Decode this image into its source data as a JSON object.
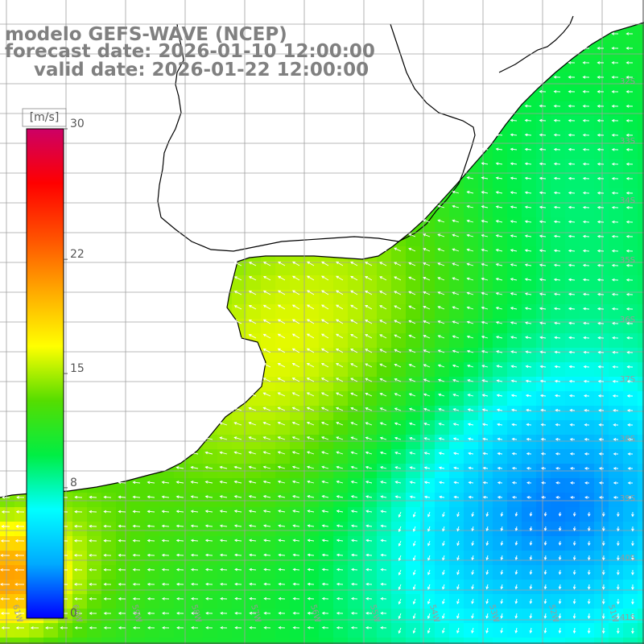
{
  "header": {
    "model": "modelo GEFS-WAVE (NCEP)",
    "forecast_date": "forecast date: 2026-01-10 12:00:00",
    "valid_date": "valid date: 2026-01-22 12:00:00"
  },
  "colorbar": {
    "unit_label": "[m/s]",
    "ticks": [
      {
        "value": 30,
        "label": "30"
      },
      {
        "value": 22,
        "label": "22"
      },
      {
        "value": 15,
        "label": "15"
      },
      {
        "value": 8,
        "label": "8"
      },
      {
        "value": 0,
        "label": "0"
      }
    ],
    "range": [
      0,
      30
    ],
    "colors": [
      "#0000ff",
      "#00aaff",
      "#00ffff",
      "#00ee44",
      "#55dd00",
      "#ffff00",
      "#ffaa00",
      "#ff5000",
      "#ff0000",
      "#cc0066"
    ]
  },
  "map": {
    "lat_labels": [
      "32S",
      "33S",
      "34S",
      "35S",
      "36S",
      "37S",
      "38S",
      "39S",
      "40S",
      "41S"
    ],
    "lon_labels": [
      "61W",
      "60W",
      "59W",
      "58W",
      "57W",
      "56W",
      "55W",
      "54W",
      "53W",
      "52W",
      "51W"
    ],
    "land_color": "#ffffff",
    "coast_color": "#000000",
    "grid_color": "#a0a0a0",
    "vector_color": "#ffffff"
  }
}
